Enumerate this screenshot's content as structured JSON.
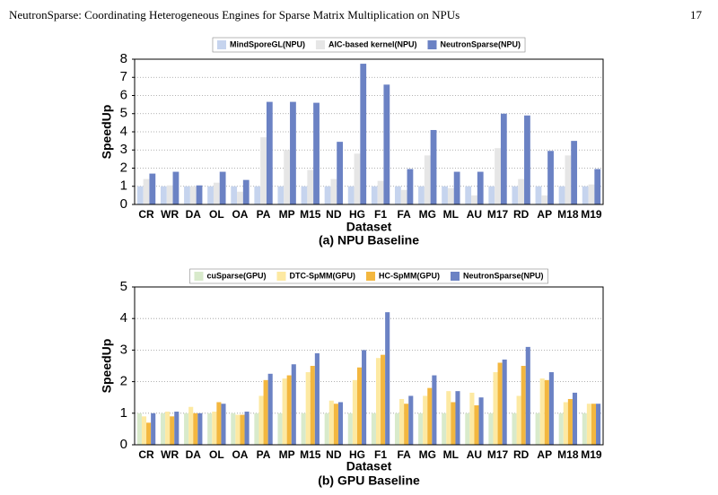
{
  "header": {
    "title": "NeutronSparse: Coordinating Heterogeneous Engines for Sparse Matrix Multiplication on NPUs",
    "page": "17"
  },
  "chart_data": [
    {
      "type": "bar",
      "caption": "(a) NPU Baseline",
      "xlabel": "Dataset",
      "ylabel": "SpeedUp",
      "categories": [
        "CR",
        "WR",
        "DA",
        "OL",
        "OA",
        "PA",
        "MP",
        "M15",
        "ND",
        "HG",
        "F1",
        "FA",
        "MG",
        "ML",
        "AU",
        "M17",
        "RD",
        "AP",
        "M18",
        "M19"
      ],
      "series": [
        {
          "name": "MindSporeGL(NPU)",
          "color": "#c6d4ee",
          "values": [
            1.0,
            1.0,
            1.0,
            1.0,
            1.0,
            1.0,
            1.0,
            1.0,
            1.0,
            1.0,
            1.0,
            1.0,
            1.0,
            1.0,
            1.0,
            1.0,
            1.0,
            1.0,
            1.0,
            1.0
          ]
        },
        {
          "name": "AIC-based kernel(NPU)",
          "color": "#e6e6e6",
          "values": [
            1.4,
            1.05,
            1.0,
            1.2,
            0.7,
            3.7,
            3.0,
            1.9,
            1.4,
            2.8,
            1.3,
            0.8,
            2.7,
            0.9,
            0.5,
            3.1,
            1.4,
            0.5,
            2.7,
            1.1
          ]
        },
        {
          "name": "NeutronSparse(NPU)",
          "color": "#6b82c4",
          "values": [
            1.7,
            1.8,
            1.05,
            1.8,
            1.35,
            5.65,
            5.65,
            5.6,
            3.45,
            7.75,
            6.6,
            1.95,
            4.1,
            1.8,
            1.8,
            5.0,
            4.9,
            2.95,
            3.5,
            1.95
          ]
        }
      ],
      "ylim": [
        0,
        8
      ],
      "yticks": [
        0,
        1,
        2,
        3,
        4,
        5,
        6,
        7,
        8
      ],
      "grid": true,
      "legend": "top"
    },
    {
      "type": "bar",
      "caption": "(b) GPU Baseline",
      "xlabel": "Dataset",
      "ylabel": "SpeedUp",
      "categories": [
        "CR",
        "WR",
        "DA",
        "OL",
        "OA",
        "PA",
        "MP",
        "M15",
        "ND",
        "HG",
        "F1",
        "FA",
        "MG",
        "ML",
        "AU",
        "M17",
        "RD",
        "AP",
        "M18",
        "M19"
      ],
      "series": [
        {
          "name": "cuSparse(GPU)",
          "color": "#d8eacb",
          "values": [
            1.0,
            1.0,
            1.0,
            1.0,
            1.0,
            1.0,
            1.0,
            1.0,
            1.0,
            1.0,
            1.0,
            1.0,
            1.0,
            1.0,
            1.0,
            1.0,
            1.0,
            1.0,
            1.0,
            1.0
          ]
        },
        {
          "name": "DTC-SpMM(GPU)",
          "color": "#fde9a2",
          "values": [
            0.9,
            1.05,
            1.2,
            1.05,
            0.95,
            1.55,
            2.1,
            2.3,
            1.4,
            2.05,
            2.75,
            1.45,
            1.55,
            1.7,
            1.65,
            2.3,
            1.55,
            2.1,
            1.35,
            1.3
          ]
        },
        {
          "name": "HC-SpMM(GPU)",
          "color": "#f3b73f",
          "values": [
            0.7,
            0.9,
            1.0,
            1.35,
            0.95,
            2.05,
            2.2,
            2.5,
            1.3,
            2.45,
            2.85,
            1.3,
            1.8,
            1.35,
            1.25,
            2.6,
            2.5,
            2.05,
            1.45,
            1.3
          ]
        },
        {
          "name": "NeutronSparse(NPU)",
          "color": "#6b82c4",
          "values": [
            1.0,
            1.05,
            1.0,
            1.3,
            1.05,
            2.25,
            2.55,
            2.9,
            1.35,
            3.0,
            4.2,
            1.55,
            2.2,
            1.7,
            1.5,
            2.7,
            3.1,
            2.3,
            1.65,
            1.3
          ]
        }
      ],
      "ylim": [
        0,
        5
      ],
      "yticks": [
        0,
        1,
        2,
        3,
        4,
        5
      ],
      "grid": true,
      "legend": "top"
    }
  ]
}
